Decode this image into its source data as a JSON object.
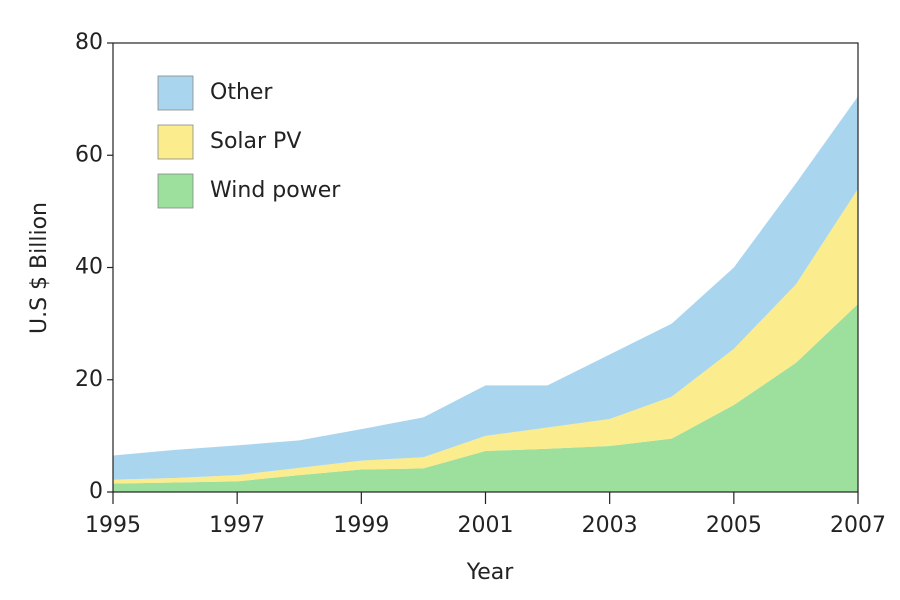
{
  "chart_data": {
    "type": "stacked_area",
    "xlabel": "Year",
    "ylabel": "U.S $ Billion",
    "x": [
      1995,
      1996,
      1997,
      1998,
      1999,
      2000,
      2001,
      2002,
      2003,
      2004,
      2005,
      2006,
      2007
    ],
    "series": [
      {
        "name": "Wind power",
        "color": "#9ddf9c",
        "values": [
          1.5,
          1.7,
          1.9,
          3,
          4,
          4.2,
          7.3,
          7.7,
          8.2,
          9.5,
          15.5,
          23,
          33.5
        ]
      },
      {
        "name": "Solar PV",
        "color": "#fbec8e",
        "values": [
          0.7,
          0.8,
          1.1,
          1.3,
          1.6,
          2.0,
          2.7,
          3.8,
          4.8,
          7.5,
          10,
          14,
          20.5
        ]
      },
      {
        "name": "Other",
        "color": "#a9d6ee",
        "values": [
          4.3,
          5.0,
          5.3,
          4.9,
          5.6,
          7.1,
          9,
          7.5,
          11.5,
          13,
          14.5,
          18,
          16.5
        ]
      }
    ],
    "xlim": [
      1995,
      2007
    ],
    "xticks": [
      1995,
      1997,
      1999,
      2001,
      2003,
      2005,
      2007
    ],
    "ylim": [
      0,
      80
    ],
    "yticks": [
      0,
      20,
      40,
      60,
      80
    ],
    "legend": "upper left"
  }
}
